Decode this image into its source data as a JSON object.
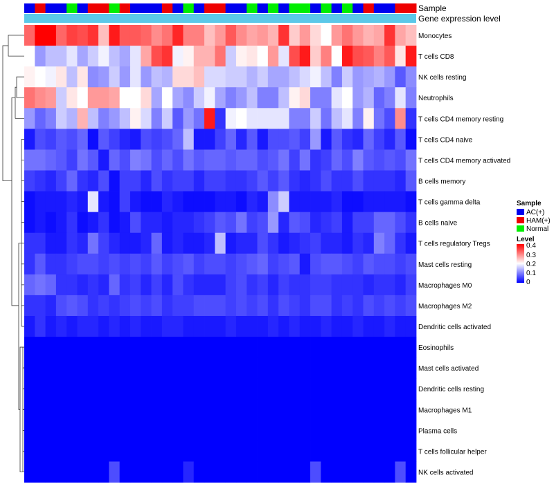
{
  "chart_data": {
    "type": "heatmap",
    "title": "",
    "annotation_tracks": [
      {
        "name": "Sample",
        "type": "categorical"
      },
      {
        "name": "Gene expression level",
        "type": "continuous",
        "color": "#5bc8e8"
      }
    ],
    "sample_groups": [
      "A",
      "H",
      "A",
      "A",
      "N",
      "A",
      "H",
      "H",
      "N",
      "H",
      "A",
      "A",
      "A",
      "H",
      "A",
      "N",
      "A",
      "H",
      "H",
      "A",
      "A",
      "N",
      "A",
      "N",
      "A",
      "N",
      "N",
      "A",
      "N",
      "A",
      "N",
      "A",
      "H",
      "A",
      "A",
      "H",
      "H"
    ],
    "rows": [
      "Monocytes",
      "T cells CD8",
      "NK cells resting",
      "Neutrophils",
      "T cells CD4 memory resting",
      "T cells CD4 naive",
      "T cells CD4 memory activated",
      "B cells memory",
      "T cells gamma delta",
      "B cells naive",
      "T cells regulatory  Tregs",
      "Mast cells resting",
      "Macrophages M0",
      "Macrophages M2",
      "Dendritic cells activated",
      "Eosinophils",
      "Mast cells activated",
      "Dendritic cells resting",
      "Macrophages M1",
      "Plasma cells",
      "T cells follicular helper",
      "NK cells activated"
    ],
    "n_columns": 37,
    "values": [
      [
        0.32,
        0.4,
        0.4,
        0.32,
        0.35,
        0.34,
        0.36,
        0.25,
        0.38,
        0.33,
        0.33,
        0.32,
        0.29,
        0.31,
        0.37,
        0.3,
        0.3,
        0.25,
        0.28,
        0.33,
        0.29,
        0.27,
        0.28,
        0.26,
        0.36,
        0.24,
        0.28,
        0.23,
        0.2,
        0.28,
        0.31,
        0.28,
        0.26,
        0.27,
        0.36,
        0.27,
        0.25
      ],
      [
        0.2,
        0.12,
        0.15,
        0.15,
        0.18,
        0.13,
        0.16,
        0.19,
        0.15,
        0.13,
        0.18,
        0.27,
        0.34,
        0.36,
        0.19,
        0.21,
        0.26,
        0.26,
        0.31,
        0.16,
        0.21,
        0.22,
        0.2,
        0.28,
        0.18,
        0.34,
        0.38,
        0.24,
        0.3,
        0.2,
        0.38,
        0.34,
        0.33,
        0.3,
        0.33,
        0.22,
        0.38
      ],
      [
        0.21,
        0.2,
        0.19,
        0.22,
        0.15,
        0.22,
        0.11,
        0.12,
        0.16,
        0.12,
        0.18,
        0.12,
        0.15,
        0.14,
        0.23,
        0.23,
        0.25,
        0.17,
        0.17,
        0.16,
        0.16,
        0.14,
        0.16,
        0.13,
        0.13,
        0.15,
        0.17,
        0.19,
        0.15,
        0.1,
        0.16,
        0.12,
        0.13,
        0.14,
        0.12,
        0.07,
        0.11
      ],
      [
        0.31,
        0.29,
        0.28,
        0.16,
        0.22,
        0.2,
        0.28,
        0.28,
        0.27,
        0.2,
        0.2,
        0.23,
        0.13,
        0.2,
        0.13,
        0.11,
        0.16,
        0.19,
        0.13,
        0.1,
        0.12,
        0.15,
        0.1,
        0.1,
        0.15,
        0.21,
        0.23,
        0.1,
        0.1,
        0.18,
        0.2,
        0.12,
        0.14,
        0.08,
        0.1,
        0.18,
        0.1
      ],
      [
        0.12,
        0.08,
        0.1,
        0.16,
        0.14,
        0.26,
        0.15,
        0.1,
        0.12,
        0.15,
        0.21,
        0.17,
        0.1,
        0.16,
        0.07,
        0.12,
        0.09,
        0.38,
        0.04,
        0.19,
        0.2,
        0.18,
        0.18,
        0.18,
        0.18,
        0.1,
        0.1,
        0.16,
        0.09,
        0.15,
        0.18,
        0.1,
        0.21,
        0.09,
        0.06,
        0.29,
        0.04
      ],
      [
        0.02,
        0.06,
        0.05,
        0.07,
        0.06,
        0.08,
        0.01,
        0.07,
        0.05,
        0.03,
        0.02,
        0.06,
        0.05,
        0.06,
        0.08,
        0.15,
        0.02,
        0.02,
        0.05,
        0.08,
        0.03,
        0.07,
        0.02,
        0.06,
        0.06,
        0.07,
        0.05,
        0.12,
        0.02,
        0.07,
        0.04,
        0.03,
        0.08,
        0.05,
        0.03,
        0.07,
        0.01
      ],
      [
        0.09,
        0.09,
        0.08,
        0.07,
        0.05,
        0.09,
        0.07,
        0.02,
        0.08,
        0.06,
        0.1,
        0.09,
        0.06,
        0.08,
        0.06,
        0.09,
        0.07,
        0.08,
        0.08,
        0.07,
        0.08,
        0.08,
        0.06,
        0.07,
        0.09,
        0.05,
        0.09,
        0.04,
        0.05,
        0.08,
        0.06,
        0.1,
        0.07,
        0.06,
        0.07,
        0.06,
        0.09
      ],
      [
        0.05,
        0.04,
        0.03,
        0.05,
        0.08,
        0.04,
        0.03,
        0.06,
        0.01,
        0.05,
        0.05,
        0.03,
        0.06,
        0.04,
        0.05,
        0.05,
        0.03,
        0.05,
        0.05,
        0.04,
        0.04,
        0.05,
        0.07,
        0.05,
        0.07,
        0.04,
        0.03,
        0.04,
        0.06,
        0.04,
        0.04,
        0.06,
        0.04,
        0.04,
        0.04,
        0.03,
        0.07
      ],
      [
        0.01,
        0.02,
        0.02,
        0.02,
        0.03,
        0.02,
        0.18,
        0.02,
        0.01,
        0.05,
        0.02,
        0.01,
        0.01,
        0.03,
        0.02,
        0.01,
        0.01,
        0.01,
        0.02,
        0.02,
        0.01,
        0.03,
        0.02,
        0.11,
        0.16,
        0.02,
        0.02,
        0.02,
        0.02,
        0.03,
        0.01,
        0.01,
        0.02,
        0.02,
        0.02,
        0.02,
        0.01
      ],
      [
        0.01,
        0.02,
        0.01,
        0.02,
        0.04,
        0.01,
        0.02,
        0.04,
        0.01,
        0.02,
        0.06,
        0.03,
        0.03,
        0.02,
        0.03,
        0.03,
        0.04,
        0.05,
        0.07,
        0.06,
        0.09,
        0.05,
        0.06,
        0.12,
        0.03,
        0.07,
        0.06,
        0.03,
        0.04,
        0.05,
        0.02,
        0.05,
        0.05,
        0.08,
        0.08,
        0.06,
        0.04
      ],
      [
        0.04,
        0.04,
        0.02,
        0.02,
        0.04,
        0.03,
        0.09,
        0.05,
        0.03,
        0.02,
        0.02,
        0.03,
        0.08,
        0.02,
        0.03,
        0.02,
        0.02,
        0.03,
        0.15,
        0.02,
        0.03,
        0.03,
        0.06,
        0.04,
        0.02,
        0.03,
        0.04,
        0.05,
        0.03,
        0.03,
        0.02,
        0.04,
        0.03,
        0.1,
        0.08,
        0.04,
        0.02
      ],
      [
        0.04,
        0.07,
        0.04,
        0.04,
        0.05,
        0.06,
        0.06,
        0.05,
        0.06,
        0.05,
        0.06,
        0.05,
        0.07,
        0.05,
        0.06,
        0.07,
        0.05,
        0.06,
        0.06,
        0.05,
        0.06,
        0.07,
        0.08,
        0.05,
        0.06,
        0.07,
        0.02,
        0.06,
        0.07,
        0.07,
        0.06,
        0.05,
        0.07,
        0.06,
        0.06,
        0.05,
        0.06
      ],
      [
        0.08,
        0.09,
        0.08,
        0.04,
        0.04,
        0.03,
        0.04,
        0.03,
        0.08,
        0.04,
        0.05,
        0.03,
        0.05,
        0.03,
        0.06,
        0.04,
        0.03,
        0.03,
        0.03,
        0.05,
        0.06,
        0.04,
        0.05,
        0.03,
        0.05,
        0.04,
        0.04,
        0.05,
        0.05,
        0.04,
        0.04,
        0.04,
        0.03,
        0.04,
        0.04,
        0.03,
        0.05
      ],
      [
        0.04,
        0.04,
        0.03,
        0.06,
        0.07,
        0.06,
        0.04,
        0.05,
        0.04,
        0.05,
        0.06,
        0.05,
        0.06,
        0.04,
        0.05,
        0.05,
        0.06,
        0.06,
        0.06,
        0.05,
        0.06,
        0.05,
        0.06,
        0.04,
        0.06,
        0.05,
        0.04,
        0.06,
        0.06,
        0.04,
        0.05,
        0.04,
        0.06,
        0.05,
        0.06,
        0.05,
        0.06
      ],
      [
        0.02,
        0.04,
        0.02,
        0.03,
        0.02,
        0.03,
        0.03,
        0.02,
        0.03,
        0.02,
        0.03,
        0.02,
        0.02,
        0.03,
        0.03,
        0.02,
        0.02,
        0.02,
        0.02,
        0.03,
        0.02,
        0.02,
        0.02,
        0.03,
        0.02,
        0.03,
        0.02,
        0.02,
        0.03,
        0.02,
        0.02,
        0.03,
        0.02,
        0.02,
        0.03,
        0.02,
        0.02
      ],
      [
        0.0,
        0.0,
        0.0,
        0.0,
        0.0,
        0.0,
        0.0,
        0.0,
        0.0,
        0.0,
        0.0,
        0.0,
        0.0,
        0.0,
        0.0,
        0.0,
        0.0,
        0.0,
        0.0,
        0.0,
        0.0,
        0.0,
        0.0,
        0.0,
        0.0,
        0.0,
        0.0,
        0.0,
        0.0,
        0.0,
        0.0,
        0.0,
        0.0,
        0.0,
        0.0,
        0.0,
        0.0
      ],
      [
        0.0,
        0.0,
        0.0,
        0.0,
        0.0,
        0.0,
        0.0,
        0.0,
        0.0,
        0.0,
        0.0,
        0.0,
        0.0,
        0.0,
        0.0,
        0.0,
        0.0,
        0.0,
        0.0,
        0.0,
        0.0,
        0.0,
        0.0,
        0.0,
        0.0,
        0.0,
        0.0,
        0.0,
        0.0,
        0.0,
        0.0,
        0.0,
        0.0,
        0.0,
        0.0,
        0.0,
        0.0
      ],
      [
        0.0,
        0.0,
        0.0,
        0.0,
        0.0,
        0.0,
        0.0,
        0.0,
        0.0,
        0.0,
        0.0,
        0.0,
        0.0,
        0.0,
        0.0,
        0.0,
        0.0,
        0.0,
        0.0,
        0.0,
        0.0,
        0.0,
        0.0,
        0.0,
        0.0,
        0.0,
        0.0,
        0.0,
        0.0,
        0.0,
        0.0,
        0.0,
        0.0,
        0.0,
        0.0,
        0.0,
        0.0
      ],
      [
        0.0,
        0.0,
        0.0,
        0.0,
        0.0,
        0.0,
        0.0,
        0.0,
        0.0,
        0.0,
        0.0,
        0.0,
        0.0,
        0.0,
        0.0,
        0.0,
        0.0,
        0.0,
        0.0,
        0.0,
        0.0,
        0.0,
        0.0,
        0.0,
        0.0,
        0.0,
        0.0,
        0.0,
        0.0,
        0.0,
        0.0,
        0.0,
        0.0,
        0.0,
        0.0,
        0.0,
        0.0
      ],
      [
        0.0,
        0.0,
        0.0,
        0.0,
        0.0,
        0.0,
        0.0,
        0.0,
        0.0,
        0.0,
        0.0,
        0.0,
        0.0,
        0.0,
        0.0,
        0.0,
        0.0,
        0.0,
        0.0,
        0.0,
        0.0,
        0.0,
        0.0,
        0.0,
        0.0,
        0.0,
        0.0,
        0.0,
        0.0,
        0.0,
        0.0,
        0.0,
        0.0,
        0.0,
        0.0,
        0.0,
        0.0
      ],
      [
        0.0,
        0.0,
        0.0,
        0.0,
        0.0,
        0.0,
        0.0,
        0.0,
        0.0,
        0.0,
        0.0,
        0.0,
        0.0,
        0.0,
        0.0,
        0.0,
        0.0,
        0.0,
        0.0,
        0.0,
        0.0,
        0.0,
        0.0,
        0.0,
        0.0,
        0.0,
        0.0,
        0.0,
        0.0,
        0.0,
        0.0,
        0.0,
        0.0,
        0.0,
        0.0,
        0.0,
        0.0
      ],
      [
        0.0,
        0.0,
        0.0,
        0.0,
        0.0,
        0.0,
        0.0,
        0.0,
        0.06,
        0.0,
        0.0,
        0.0,
        0.0,
        0.0,
        0.0,
        0.03,
        0.0,
        0.0,
        0.0,
        0.0,
        0.0,
        0.0,
        0.0,
        0.0,
        0.0,
        0.0,
        0.0,
        0.06,
        0.0,
        0.0,
        0.0,
        0.0,
        0.0,
        0.0,
        0.0,
        0.06,
        0.0
      ]
    ],
    "legend": {
      "sample": {
        "title": "Sample",
        "items": [
          {
            "key": "A",
            "label": "AC(+)",
            "color": "#0000ee"
          },
          {
            "key": "H",
            "label": "HAM(+)",
            "color": "#ee0000"
          },
          {
            "key": "N",
            "label": "Normal",
            "color": "#00ee00"
          }
        ]
      },
      "level": {
        "title": "Level",
        "range": [
          0,
          0.4
        ],
        "ticks": [
          "0.4",
          "0.3",
          "0.2",
          "0.1",
          "0"
        ],
        "colors": [
          "#0000ff",
          "#ffffff",
          "#ff0000"
        ]
      }
    },
    "dendrogram": "rows",
    "legend_position": "right"
  }
}
